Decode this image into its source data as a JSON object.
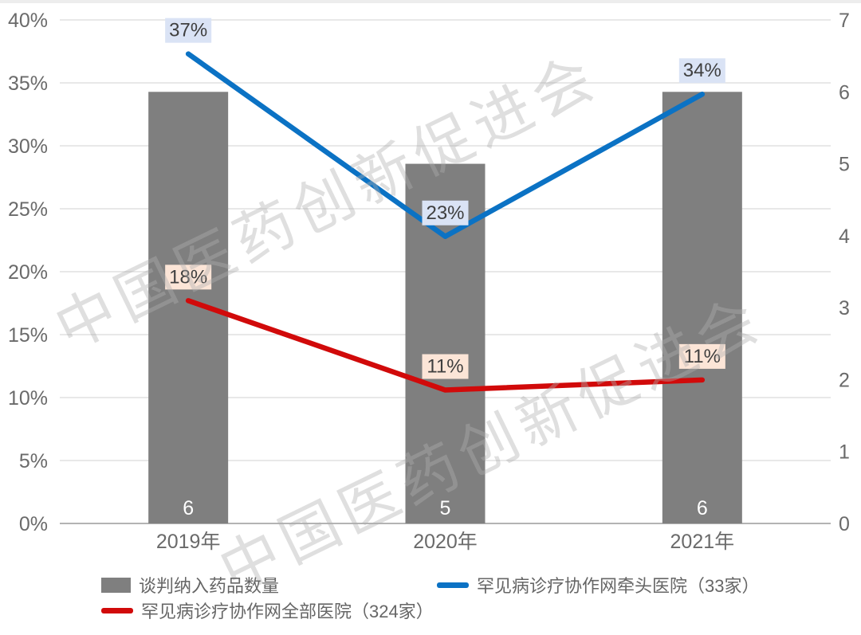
{
  "watermark": {
    "text": "中国医药创新促进会"
  },
  "colors": {
    "bar": "#7f7f7f",
    "blue_line": "#0b72c4",
    "red_line": "#d10a0a",
    "blue_label_bg": "#dae3f5",
    "red_label_bg": "#fce5d7",
    "label_text": "#3f3f3f",
    "axis_text": "#6a6a6a",
    "grid": "#d9d9d9",
    "axis_line": "#b3b3b3",
    "bar_value_text": "#ffffff"
  },
  "chart_data": {
    "type": "bar",
    "subtype": "combo-bar-line-dual-axis",
    "categories": [
      "2019年",
      "2020年",
      "2021年"
    ],
    "series": [
      {
        "name": "谈判纳入药品数量",
        "type": "bar",
        "axis": "right",
        "values": [
          6,
          5,
          6
        ],
        "labels": [
          "6",
          "5",
          "6"
        ]
      },
      {
        "name": "罕见病诊疗协作网牵头医院（33家）",
        "type": "line",
        "axis": "left",
        "values": [
          37,
          23,
          34
        ],
        "values_precise": [
          37.3,
          22.8,
          34.1
        ],
        "labels": [
          "37%",
          "23%",
          "34%"
        ]
      },
      {
        "name": "罕见病诊疗协作网全部医院（324家）",
        "type": "line",
        "axis": "left",
        "values": [
          18,
          11,
          11
        ],
        "values_precise": [
          17.7,
          10.6,
          11.4
        ],
        "labels": [
          "18%",
          "11%",
          "11%"
        ]
      }
    ],
    "left_axis": {
      "min": 0,
      "max": 40,
      "step": 5,
      "ticks": [
        "0%",
        "5%",
        "10%",
        "15%",
        "20%",
        "25%",
        "30%",
        "35%",
        "40%"
      ]
    },
    "right_axis": {
      "min": 0,
      "max": 7,
      "step": 1,
      "ticks": [
        "0",
        "1",
        "2",
        "3",
        "4",
        "5",
        "6",
        "7"
      ]
    },
    "grid": true,
    "legend_position": "bottom",
    "title": ""
  },
  "legend": {
    "items": [
      {
        "label": "谈判纳入药品数量",
        "marker": "bar"
      },
      {
        "label": "罕见病诊疗协作网牵头医院（33家）",
        "marker": "line-blue"
      },
      {
        "label": "罕见病诊疗协作网全部医院（324家）",
        "marker": "line-red"
      }
    ]
  }
}
